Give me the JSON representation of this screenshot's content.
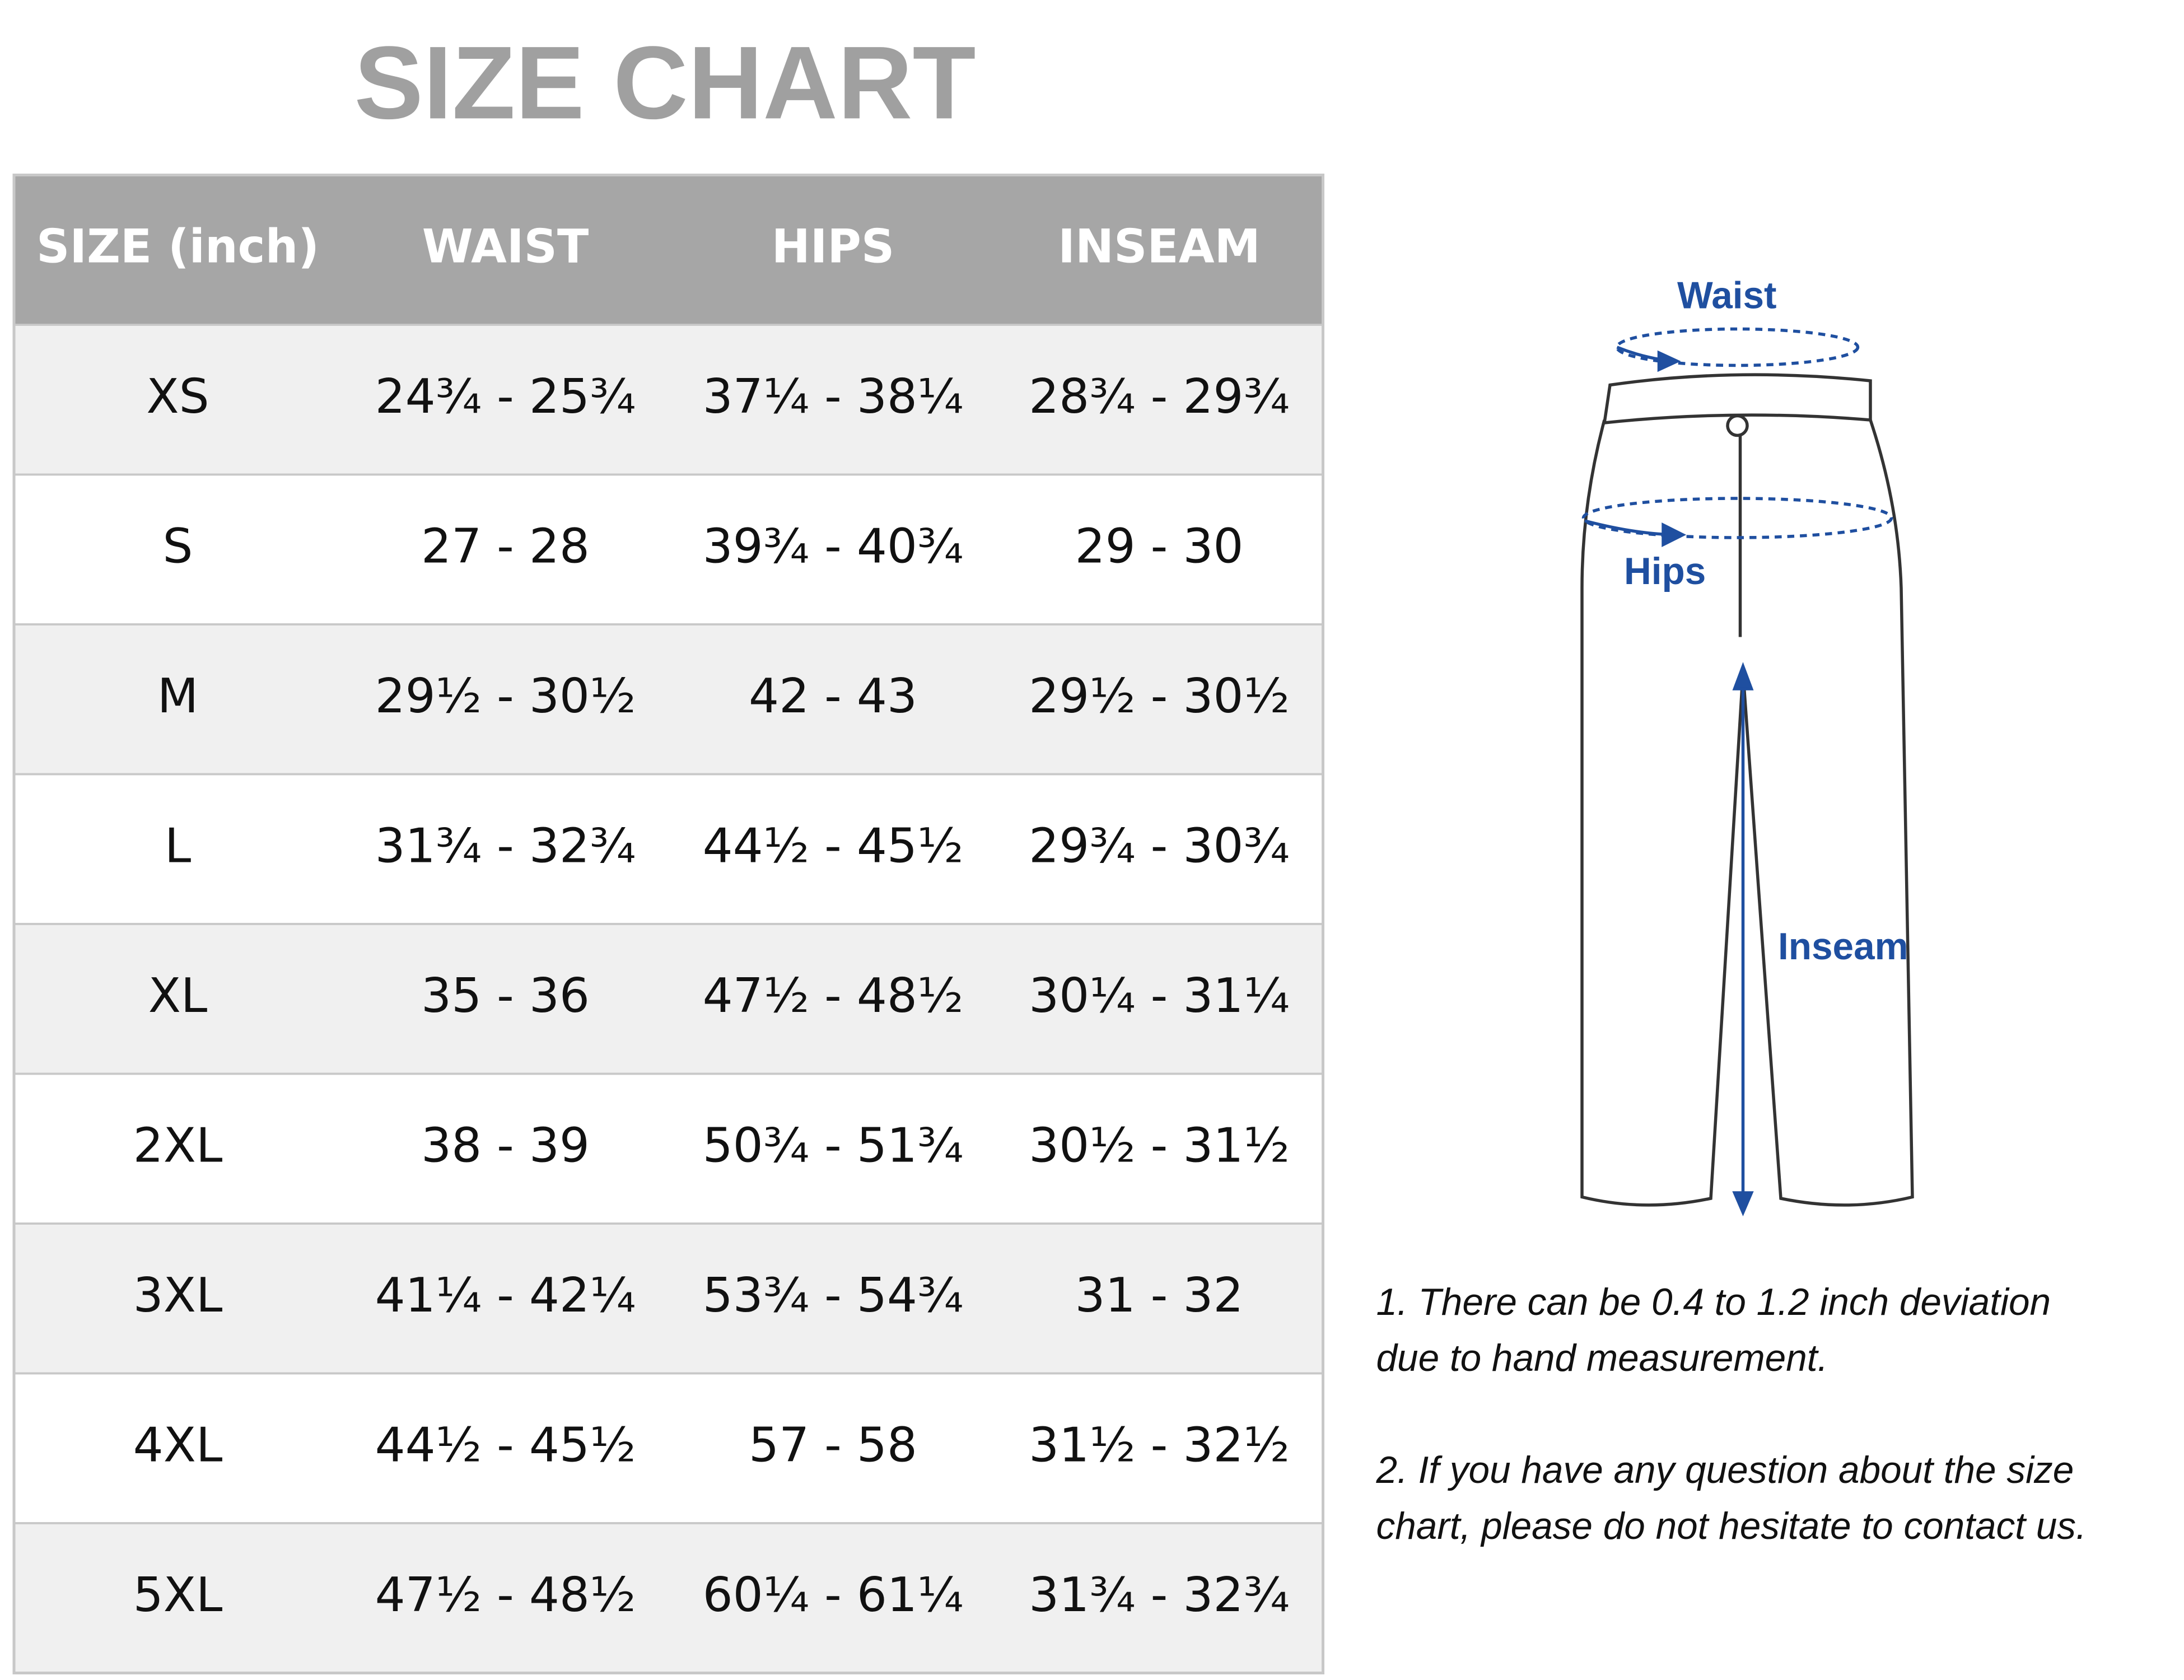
{
  "header": {
    "title": "SIZE CHART"
  },
  "table": {
    "columns": [
      "SIZE (inch)",
      "WAIST",
      "HIPS",
      "INSEAM"
    ],
    "rows": [
      [
        "XS",
        "24¾ - 25¾",
        "37¼ - 38¼",
        "28¾ - 29¾"
      ],
      [
        "S",
        "27 - 28",
        "39¾ - 40¾",
        "29 - 30"
      ],
      [
        "M",
        "29½ - 30½",
        "42 - 43",
        "29½ - 30½"
      ],
      [
        "L",
        "31¾ - 32¾",
        "44½ - 45½",
        "29¾ - 30¾"
      ],
      [
        "XL",
        "35 - 36",
        "47½ - 48½",
        "30¼ - 31¼"
      ],
      [
        "2XL",
        "38 - 39",
        "50¾ - 51¾",
        "30½ - 31½"
      ],
      [
        "3XL",
        "41¼ - 42¼",
        "53¾ - 54¾",
        "31 - 32"
      ],
      [
        "4XL",
        "44½ - 45½",
        "57 - 58",
        "31½ - 32½"
      ],
      [
        "5XL",
        "47½ - 48½",
        "60¼ - 61¼",
        "31¾ - 32¾"
      ]
    ]
  },
  "diagram": {
    "labels": [
      "Waist",
      "Hips",
      "Inseam"
    ]
  },
  "notes": [
    [
      "1. There can be 0.4 to 1.2 inch deviation",
      "due to hand measurement."
    ],
    [
      "2. If you have any question about the size",
      "chart, please do not hesitate to contact us."
    ]
  ]
}
